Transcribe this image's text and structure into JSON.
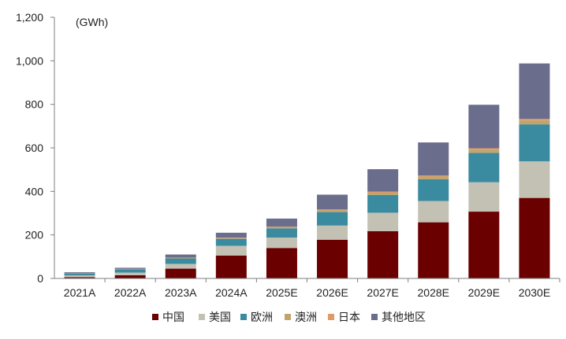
{
  "chart_data": {
    "type": "bar",
    "stacked": true,
    "unit_label": "(GWh)",
    "categories": [
      "2021A",
      "2022A",
      "2023A",
      "2024A",
      "2025E",
      "2026E",
      "2027E",
      "2028E",
      "2029E",
      "2030E"
    ],
    "yticks": [
      "0",
      "200",
      "400",
      "600",
      "800",
      "1,000",
      "1,200"
    ],
    "ylim": [
      0,
      1200
    ],
    "grid": false,
    "legend_position": "bottom",
    "series": [
      {
        "name": "中国",
        "color": "#6b0000",
        "values": [
          6,
          15,
          45,
          105,
          140,
          178,
          217,
          258,
          307,
          370
        ]
      },
      {
        "name": "美国",
        "color": "#c3c1b4",
        "values": [
          8,
          12,
          22,
          45,
          48,
          65,
          85,
          98,
          135,
          168
        ]
      },
      {
        "name": "欧洲",
        "color": "#3a8aa0",
        "values": [
          10,
          15,
          25,
          32,
          42,
          62,
          82,
          100,
          135,
          170
        ]
      },
      {
        "name": "澳洲",
        "color": "#c0a46a",
        "values": [
          1,
          1,
          2,
          3,
          5,
          8,
          10,
          12,
          15,
          18
        ]
      },
      {
        "name": "日本",
        "color": "#e09a66",
        "values": [
          1,
          1,
          2,
          2,
          3,
          4,
          5,
          5,
          6,
          7
        ]
      },
      {
        "name": "其他地区",
        "color": "#6b6d8c",
        "values": [
          3,
          5,
          14,
          23,
          37,
          68,
          103,
          152,
          200,
          255
        ]
      }
    ]
  }
}
